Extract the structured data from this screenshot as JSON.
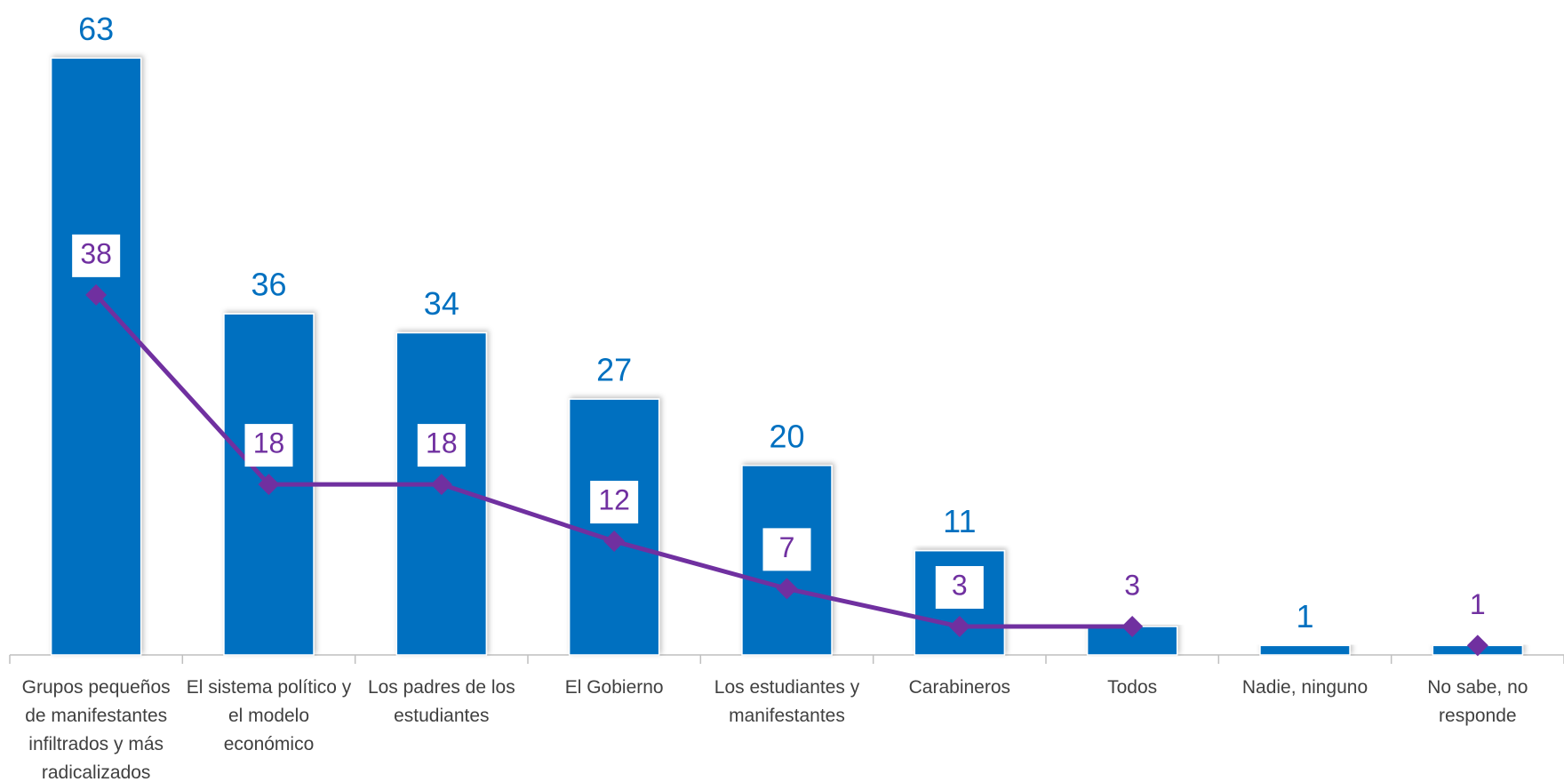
{
  "chart_data": {
    "type": "bar",
    "categories": [
      "Grupos pequeños de manifestantes infiltrados y más radicalizados",
      "El sistema político y el modelo económico",
      "Los padres de los estudiantes",
      "El Gobierno",
      "Los estudiantes y manifestantes",
      "Carabineros",
      "Todos",
      "Nadie, ninguno",
      "No sabe, no responde"
    ],
    "series": [
      {
        "type": "bar",
        "color": "#0070c0",
        "values": [
          63,
          36,
          34,
          27,
          20,
          11,
          3,
          1,
          1
        ],
        "value_labels": [
          63,
          36,
          34,
          27,
          20,
          11,
          null,
          1,
          null
        ]
      },
      {
        "type": "line",
        "color": "#7030a0",
        "values": [
          38,
          18,
          18,
          12,
          7,
          3,
          3,
          null,
          1
        ]
      }
    ],
    "ylim": [
      0,
      65
    ]
  }
}
